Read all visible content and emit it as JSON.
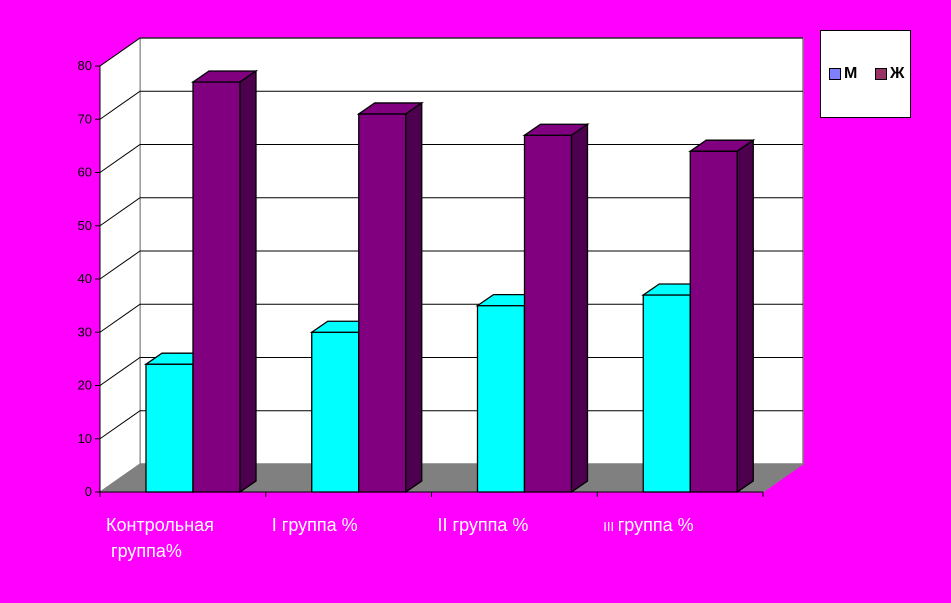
{
  "chart_data": {
    "type": "bar",
    "categories": [
      "Контрольная группа%",
      "I группа %",
      "II группа %",
      "III группа %"
    ],
    "series": [
      {
        "name": "М",
        "values": [
          24,
          30,
          35,
          37
        ],
        "color": "#00ffff"
      },
      {
        "name": "Ж",
        "values": [
          77,
          71,
          67,
          64
        ],
        "color": "#800080"
      }
    ],
    "yticks": [
      0,
      10,
      20,
      30,
      40,
      50,
      60,
      70,
      80
    ],
    "ylim": [
      0,
      80
    ],
    "grid": true,
    "legend_position": "top-right",
    "style": "3d-column",
    "colors": {
      "background": "#ff00ff",
      "plot_back_wall": "#ffffff",
      "floor": "#808080",
      "gridline": "#000000"
    }
  }
}
